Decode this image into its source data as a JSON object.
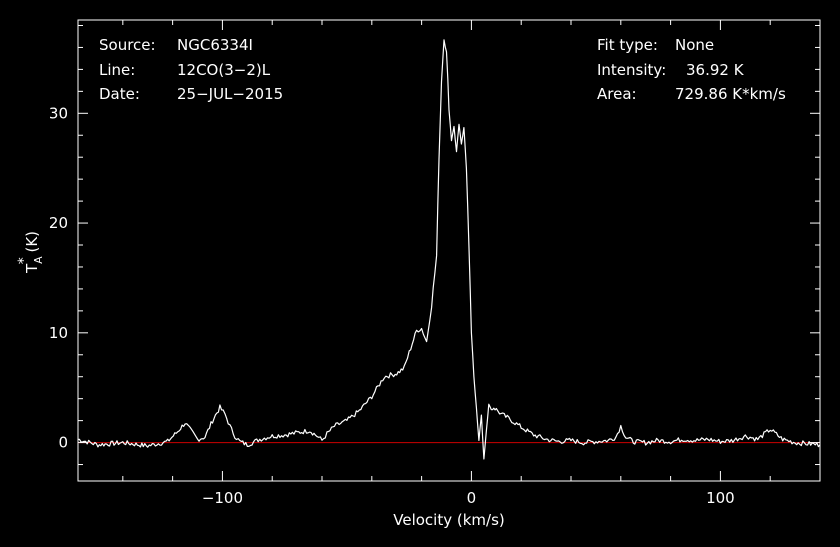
{
  "info": {
    "source_key": "Source:",
    "source_val": "NGC6334I",
    "line_key": "Line:",
    "line_val": "12CO(3−2)L",
    "date_key": "Date:",
    "date_val": "25−JUL−2015",
    "fit_key": "Fit type:",
    "fit_val": "None",
    "intensity_key": "Intensity:",
    "intensity_val": "36.92 K",
    "area_key": "Area:",
    "area_val": "729.86 K*km/s"
  },
  "chart_data": {
    "type": "line",
    "xlabel": "Velocity (km/s)",
    "ylabel_main": "T",
    "ylabel_sub": "A",
    "ylabel_sup": "*",
    "ylabel_unit": " (K)",
    "xlim": [
      -158,
      140
    ],
    "ylim": [
      -3.5,
      38.5
    ],
    "xticks": [
      -100,
      0,
      100
    ],
    "xtick_labels": [
      "−100",
      "0",
      "100"
    ],
    "yticks": [
      0,
      10,
      20,
      30
    ],
    "ytick_labels": [
      "0",
      "10",
      "20",
      "30"
    ],
    "grid": false,
    "colors": {
      "background": "#000000",
      "axes": "#ffffff",
      "spectrum": "#ffffff",
      "baseline": "#cc0000"
    },
    "baseline_y": 0,
    "series": [
      {
        "x": [
          -158,
          -150,
          -140,
          -130,
          -122,
          -118,
          -115,
          -113,
          -110,
          -107,
          -104,
          -101,
          -99,
          -97,
          -95,
          -93,
          -90,
          -85,
          -80,
          -75,
          -70,
          -65,
          -62,
          -60,
          -58,
          -55,
          -50,
          -45,
          -40,
          -35,
          -30,
          -27,
          -25,
          -22,
          -20,
          -18,
          -16,
          -14,
          -13,
          -12,
          -11,
          -10,
          -9,
          -8,
          -7,
          -6,
          -5,
          -4,
          -3,
          -2,
          -1,
          0,
          1,
          2,
          3,
          4,
          5,
          6,
          7,
          8,
          9,
          10,
          12,
          15,
          20,
          25,
          30,
          35,
          40,
          45,
          50,
          55,
          58,
          60,
          62,
          65,
          70,
          75,
          80,
          85,
          90,
          95,
          100,
          105,
          110,
          115,
          120,
          125,
          130,
          135,
          140
        ],
        "y": [
          0.3,
          -0.2,
          0.0,
          -0.3,
          0.1,
          1.0,
          1.8,
          1.2,
          0.3,
          0.5,
          2.0,
          3.2,
          2.6,
          1.5,
          0.6,
          0.1,
          -0.2,
          0.3,
          0.6,
          0.7,
          0.9,
          1.1,
          0.6,
          0.2,
          0.8,
          1.5,
          2.0,
          2.9,
          4.2,
          6.0,
          6.3,
          6.8,
          8.2,
          10.2,
          10.4,
          9.2,
          12.5,
          17.0,
          26.0,
          33.0,
          36.9,
          35.5,
          30.5,
          27.5,
          28.8,
          26.5,
          29.0,
          27.2,
          28.7,
          25.0,
          18.0,
          10.0,
          6.0,
          3.2,
          0.2,
          2.5,
          -1.5,
          1.0,
          3.5,
          3.0,
          3.2,
          3.0,
          2.6,
          2.2,
          1.4,
          0.7,
          0.3,
          0.1,
          0.2,
          0.0,
          0.1,
          0.2,
          0.5,
          1.5,
          0.5,
          0.1,
          0.0,
          0.2,
          0.1,
          0.3,
          0.2,
          0.3,
          0.1,
          0.2,
          0.6,
          0.3,
          1.2,
          0.3,
          0.0,
          -0.1,
          -0.2
        ]
      }
    ]
  }
}
